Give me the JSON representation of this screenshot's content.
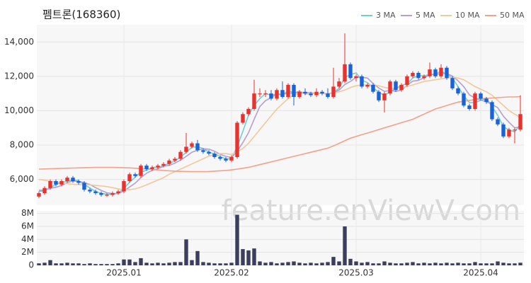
{
  "chart_data": {
    "type": "candlestick",
    "title": "펨트론(168360)",
    "watermark": "feature.enViewV.com",
    "legend_position": "top-right",
    "up_color": "#e8322e",
    "down_color": "#1a63d6",
    "volume_color": "#3b3f5c",
    "grid": true,
    "categories": [
      null,
      null,
      null,
      null,
      null,
      null,
      null,
      null,
      null,
      null,
      null,
      null,
      null,
      null,
      null,
      "2025.01",
      null,
      null,
      null,
      null,
      null,
      null,
      null,
      null,
      null,
      null,
      null,
      null,
      null,
      null,
      null,
      null,
      null,
      null,
      "2025.02",
      null,
      null,
      null,
      null,
      null,
      null,
      null,
      null,
      null,
      null,
      null,
      null,
      null,
      null,
      null,
      null,
      null,
      null,
      null,
      null,
      null,
      "2025.03",
      null,
      null,
      null,
      null,
      null,
      null,
      null,
      null,
      null,
      null,
      null,
      null,
      null,
      null,
      null,
      null,
      null,
      null,
      null,
      null,
      null,
      "2025.04",
      null,
      null,
      null,
      null,
      null,
      null,
      null
    ],
    "open": [
      5000,
      5200,
      5500,
      5900,
      5700,
      5900,
      6100,
      5900,
      5800,
      5400,
      5300,
      5200,
      5100,
      5100,
      5200,
      5300,
      5900,
      6300,
      6200,
      6800,
      6600,
      6700,
      6800,
      6900,
      7100,
      7200,
      7600,
      7900,
      8100,
      7700,
      7600,
      7500,
      7300,
      7200,
      7100,
      7300,
      9300,
      9800,
      10100,
      11000,
      11000,
      11000,
      10700,
      11200,
      10800,
      11500,
      10800,
      11100,
      11000,
      10900,
      11100,
      11000,
      10800,
      11400,
      11700,
      12700,
      11900,
      12000,
      11400,
      11500,
      11100,
      10600,
      11000,
      11700,
      11200,
      11500,
      12000,
      12200,
      11900,
      12000,
      12400,
      12000,
      12500,
      11900,
      11300,
      11000,
      10300,
      10100,
      11000,
      10700,
      10500,
      9500,
      9200,
      8500,
      8900,
      8900
    ],
    "high": [
      5300,
      5600,
      6000,
      6000,
      6000,
      6200,
      6200,
      6000,
      5900,
      5500,
      5400,
      5300,
      5200,
      5300,
      5400,
      6000,
      6400,
      6400,
      6900,
      6900,
      6800,
      6900,
      7000,
      7200,
      7300,
      7700,
      8700,
      8200,
      8300,
      7800,
      7700,
      7600,
      7400,
      7300,
      7400,
      9400,
      9900,
      10200,
      11800,
      11300,
      11200,
      11200,
      11300,
      11700,
      11600,
      11600,
      11200,
      11300,
      11100,
      11300,
      11200,
      11300,
      12500,
      11900,
      14500,
      12800,
      12100,
      12100,
      11600,
      11600,
      11200,
      11100,
      11800,
      11800,
      11600,
      12100,
      12300,
      12300,
      12100,
      12800,
      12500,
      12700,
      12600,
      12000,
      11400,
      11100,
      10400,
      11100,
      11100,
      10800,
      10600,
      9600,
      9300,
      9000,
      9000,
      10900
    ],
    "low": [
      4900,
      5100,
      5400,
      5600,
      5600,
      5800,
      5800,
      5700,
      5300,
      5200,
      5100,
      5000,
      5000,
      5000,
      5100,
      5200,
      5800,
      6100,
      6100,
      6500,
      6500,
      6600,
      6700,
      6800,
      7000,
      7100,
      7500,
      7800,
      7600,
      7500,
      7400,
      7200,
      7100,
      7000,
      7000,
      7200,
      9200,
      9700,
      10000,
      10800,
      10800,
      10600,
      10600,
      10700,
      10700,
      10300,
      10700,
      10900,
      10800,
      10800,
      10900,
      10700,
      10700,
      11300,
      11600,
      11800,
      11700,
      11300,
      11300,
      11000,
      10500,
      9900,
      10900,
      11100,
      11100,
      11400,
      11900,
      11800,
      11800,
      11900,
      11900,
      11900,
      11800,
      11200,
      10900,
      10200,
      10000,
      10000,
      10600,
      10400,
      9400,
      9100,
      8400,
      8400,
      8100,
      8800
    ],
    "close": [
      5200,
      5500,
      5900,
      5700,
      5900,
      6100,
      5900,
      5800,
      5400,
      5300,
      5200,
      5100,
      5100,
      5200,
      5300,
      5900,
      6300,
      6200,
      6800,
      6600,
      6700,
      6800,
      6900,
      7100,
      7200,
      7600,
      7900,
      8100,
      7700,
      7600,
      7500,
      7300,
      7200,
      7100,
      7300,
      9300,
      9800,
      10100,
      11000,
      11000,
      11000,
      10700,
      11200,
      10800,
      11500,
      10800,
      11100,
      11000,
      10900,
      11100,
      11000,
      10800,
      11400,
      11700,
      12700,
      11900,
      12000,
      11400,
      11500,
      11100,
      10600,
      11000,
      11700,
      11200,
      11500,
      12000,
      12200,
      11900,
      12000,
      12400,
      12000,
      12500,
      11900,
      11300,
      11000,
      10300,
      10100,
      11000,
      10700,
      10500,
      9500,
      9200,
      8500,
      8900,
      8900,
      9800
    ],
    "volume": [
      0.3,
      0.4,
      0.8,
      0.3,
      0.3,
      0.4,
      0.3,
      0.3,
      0.2,
      0.3,
      0.2,
      0.2,
      0.2,
      0.2,
      0.3,
      0.9,
      0.9,
      0.5,
      1.1,
      0.4,
      0.3,
      0.4,
      0.3,
      0.4,
      0.5,
      0.5,
      4.0,
      0.8,
      2.2,
      0.5,
      0.4,
      0.3,
      0.3,
      0.3,
      0.4,
      7.8,
      2.5,
      2.3,
      2.6,
      0.6,
      0.4,
      0.5,
      0.3,
      0.4,
      0.5,
      0.6,
      0.4,
      0.3,
      0.4,
      0.3,
      0.4,
      0.5,
      1.3,
      0.6,
      6.0,
      1.0,
      0.6,
      0.4,
      0.5,
      0.3,
      0.3,
      0.6,
      0.4,
      0.3,
      0.3,
      0.4,
      0.5,
      0.3,
      0.4,
      0.3,
      0.4,
      0.3,
      0.4,
      0.3,
      0.4,
      0.3,
      0.3,
      0.5,
      0.3,
      0.3,
      0.3,
      0.6,
      0.4,
      0.3,
      0.3,
      0.4
    ],
    "series": [
      {
        "name": "3 MA",
        "color": "#6fcfd0",
        "values": [
          5300,
          5330,
          5530,
          5700,
          5830,
          5900,
          5970,
          5930,
          5700,
          5500,
          5300,
          5200,
          5130,
          5130,
          5200,
          5470,
          5830,
          6130,
          6430,
          6530,
          6700,
          6700,
          6800,
          6930,
          7070,
          7300,
          7570,
          7870,
          7900,
          7800,
          7600,
          7470,
          7330,
          7200,
          7200,
          7900,
          8800,
          9730,
          10300,
          10700,
          11000,
          10900,
          10970,
          10900,
          11170,
          11030,
          11130,
          10970,
          11000,
          11000,
          11000,
          10970,
          11070,
          11300,
          11930,
          12100,
          12200,
          11770,
          11630,
          11330,
          11070,
          10900,
          11100,
          11300,
          11470,
          11570,
          11900,
          12030,
          12030,
          12100,
          12130,
          12300,
          12130,
          11900,
          11400,
          10870,
          10470,
          10470,
          10600,
          10730,
          10230,
          9730,
          9070,
          8870,
          8770,
          9200
        ]
      },
      {
        "name": "5 MA",
        "color": "#b49fd0",
        "values": [
          5360,
          5380,
          5480,
          5540,
          5640,
          5820,
          5900,
          5880,
          5820,
          5700,
          5520,
          5360,
          5220,
          5180,
          5180,
          5320,
          5560,
          5780,
          6100,
          6360,
          6520,
          6620,
          6760,
          6820,
          6940,
          7120,
          7340,
          7580,
          7700,
          7780,
          7760,
          7640,
          7460,
          7340,
          7280,
          7640,
          8140,
          8720,
          9500,
          10240,
          10580,
          10760,
          10980,
          10940,
          11040,
          11000,
          11080,
          11040,
          11060,
          10980,
          11020,
          10960,
          11040,
          11200,
          11520,
          11700,
          11940,
          11940,
          11900,
          11580,
          11320,
          11120,
          11180,
          11120,
          11200,
          11480,
          11720,
          11760,
          11920,
          12100,
          12100,
          12160,
          12160,
          12020,
          11740,
          11400,
          10920,
          10740,
          10620,
          10520,
          10360,
          10180,
          9680,
          9320,
          9000,
          9060
        ]
      },
      {
        "name": "10 MA",
        "color": "#f2c89a",
        "values": [
          6000,
          5950,
          5900,
          5850,
          5800,
          5750,
          5720,
          5700,
          5700,
          5680,
          5650,
          5620,
          5580,
          5520,
          5450,
          5400,
          5400,
          5450,
          5550,
          5680,
          5820,
          5960,
          6100,
          6300,
          6450,
          6600,
          6750,
          6900,
          7050,
          7200,
          7350,
          7450,
          7500,
          7500,
          7450,
          7600,
          7800,
          8100,
          8500,
          8900,
          9300,
          9700,
          10100,
          10400,
          10700,
          10900,
          11000,
          11000,
          11000,
          11000,
          11000,
          11000,
          11000,
          11100,
          11200,
          11350,
          11450,
          11500,
          11500,
          11500,
          11450,
          11350,
          11300,
          11300,
          11350,
          11400,
          11500,
          11600,
          11700,
          11750,
          11800,
          11850,
          11900,
          11950,
          11900,
          11800,
          11600,
          11400,
          11250,
          11100,
          10900,
          10600,
          10300,
          10000,
          9800,
          9600
        ]
      },
      {
        "name": "50 MA",
        "color": "#f4a08a",
        "values": [
          6600,
          6610,
          6620,
          6630,
          6640,
          6650,
          6660,
          6670,
          6680,
          6690,
          6700,
          6700,
          6700,
          6700,
          6690,
          6680,
          6670,
          6650,
          6630,
          6600,
          6580,
          6550,
          6520,
          6500,
          6480,
          6470,
          6460,
          6450,
          6450,
          6450,
          6460,
          6480,
          6500,
          6520,
          6550,
          6600,
          6650,
          6700,
          6780,
          6860,
          6940,
          7020,
          7100,
          7180,
          7260,
          7340,
          7420,
          7500,
          7580,
          7660,
          7740,
          7820,
          7950,
          8100,
          8250,
          8400,
          8500,
          8600,
          8700,
          8800,
          8900,
          9000,
          9100,
          9200,
          9300,
          9400,
          9500,
          9650,
          9800,
          9950,
          10100,
          10200,
          10300,
          10400,
          10500,
          10550,
          10600,
          10650,
          10700,
          10720,
          10740,
          10760,
          10780,
          10800,
          10800,
          10820
        ]
      }
    ],
    "ylim": [
      4500,
      15000
    ],
    "yticks": [
      {
        "value": 6000,
        "label": "6,000"
      },
      {
        "value": 8000,
        "label": "8,000"
      },
      {
        "value": 10000,
        "label": "10,000"
      },
      {
        "value": 12000,
        "label": "12,000"
      },
      {
        "value": 14000,
        "label": "14,000"
      }
    ],
    "volume_ylim": [
      0,
      8.4
    ],
    "volume_yticks": [
      0,
      {
        "value": 2,
        "label": "2M"
      },
      {
        "value": 4,
        "label": "4M"
      },
      {
        "value": 6,
        "label": "6M"
      },
      {
        "value": 8,
        "label": "8M"
      }
    ]
  }
}
